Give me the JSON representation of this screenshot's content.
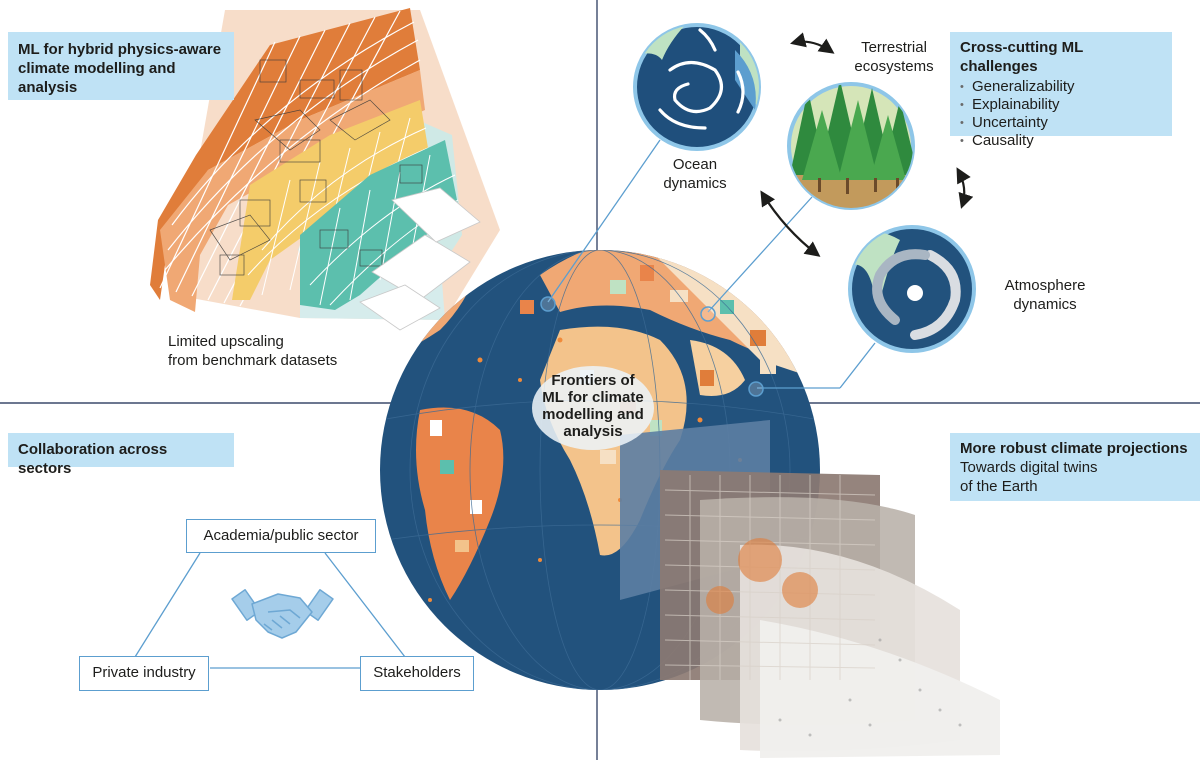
{
  "quadrants": {
    "top_left": {
      "title": "ML for hybrid physics-aware climate modelling and analysis",
      "caption_line1": "Limited upscaling",
      "caption_line2": "from benchmark datasets"
    },
    "top_right": {
      "challenges_title": "Cross-cutting ML challenges",
      "challenges": [
        "Generalizability",
        "Explainability",
        "Uncertainty",
        "Causality"
      ],
      "ocean_label_line1": "Ocean",
      "ocean_label_line2": "dynamics",
      "terrestrial_label_line1": "Terrestrial",
      "terrestrial_label_line2": "ecosystems",
      "atmosphere_label_line1": "Atmosphere",
      "atmosphere_label_line2": "dynamics"
    },
    "bottom_left": {
      "title": "Collaboration across sectors",
      "node_academia": "Academia/public sector",
      "node_industry": "Private industry",
      "node_stakeholders": "Stakeholders"
    },
    "bottom_right": {
      "title": "More robust climate projections",
      "subtitle_line1": "Towards digital twins",
      "subtitle_line2": "of the Earth"
    }
  },
  "center": {
    "line1": "Frontiers of",
    "line2": "ML for climate",
    "line3": "modelling and",
    "line4": "analysis"
  },
  "colors": {
    "callout_bg": "#bfe2f5",
    "ocean": "#22527d",
    "land_orange": "#e9844a",
    "accent_blue": "#5c9ecf",
    "teal": "#54b5a1",
    "yellow": "#e8b83a"
  },
  "icons": [
    "handshake-icon",
    "globe-icon",
    "forest-icon",
    "cyclone-icon",
    "ocean-gyre-icon"
  ]
}
